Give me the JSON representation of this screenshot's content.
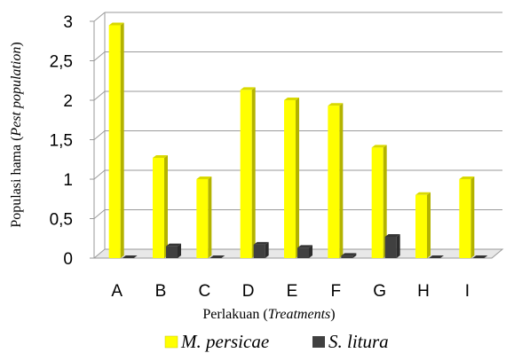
{
  "chart_data": {
    "type": "bar",
    "categories": [
      "A",
      "B",
      "C",
      "D",
      "E",
      "F",
      "G",
      "H",
      "I"
    ],
    "series": [
      {
        "name": "M. persicae",
        "color": "#ffff00",
        "values": [
          2.95,
          1.27,
          1.0,
          2.13,
          2.0,
          1.93,
          1.4,
          0.8,
          1.0
        ]
      },
      {
        "name": "S. litura",
        "color": "#404040",
        "values": [
          0.0,
          0.15,
          0.0,
          0.17,
          0.13,
          0.03,
          0.27,
          0.0,
          0.0
        ]
      }
    ],
    "ylim": [
      0,
      3
    ],
    "yticks": [
      "0",
      "0,5",
      "1",
      "1,5",
      "2",
      "2,5",
      "3"
    ],
    "ytick_values": [
      0,
      0.5,
      1,
      1.5,
      2,
      2.5,
      3
    ],
    "ylabel_plain": "Populasi hama (",
    "ylabel_italic": "Pest population",
    "ylabel_end": ")",
    "xlabel_plain": "Perlakuan (",
    "xlabel_italic": "Treatments",
    "xlabel_end": ")",
    "grid": true,
    "legend_position": "bottom"
  }
}
